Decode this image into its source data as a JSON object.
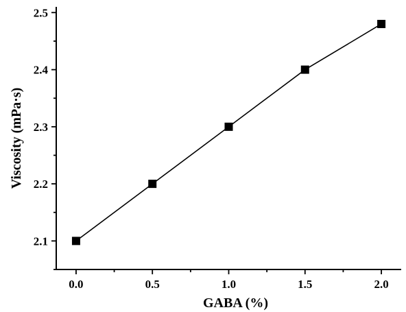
{
  "chart_data": {
    "type": "line",
    "title": "",
    "xlabel": "GABA (%)",
    "ylabel": "Viscosity (mPa·s)",
    "xlim": [
      -0.13,
      2.13
    ],
    "ylim": [
      2.05,
      2.51
    ],
    "x_ticks": [
      0.0,
      0.5,
      1.0,
      1.5,
      2.0
    ],
    "x_tick_labels": [
      "0.0",
      "0.5",
      "1.0",
      "1.5",
      "2.0"
    ],
    "y_ticks": [
      2.1,
      2.2,
      2.3,
      2.4,
      2.5
    ],
    "y_tick_labels": [
      "2.1",
      "2.2",
      "2.3",
      "2.4",
      "2.5"
    ],
    "grid": false,
    "marker": "square",
    "series": [
      {
        "x": [
          0.0,
          0.5,
          1.0,
          1.5,
          2.0
        ],
        "y": [
          2.1,
          2.2,
          2.3,
          2.4,
          2.48
        ],
        "color": "#000000"
      }
    ]
  }
}
